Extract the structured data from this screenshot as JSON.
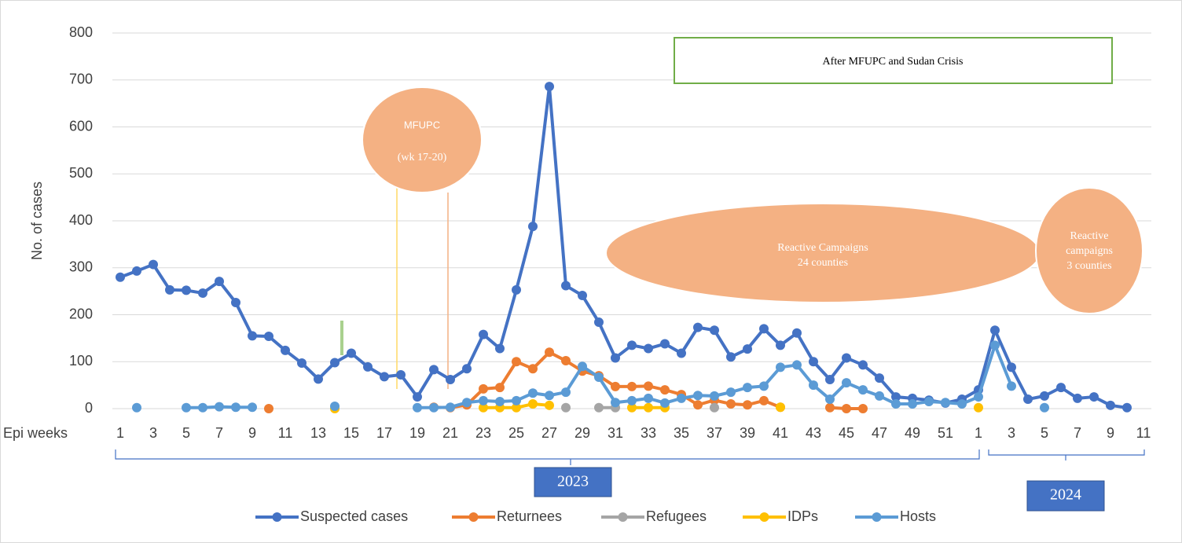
{
  "chart_data": {
    "type": "line",
    "y_axis_label": "No. of cases",
    "x_axis_label": "Epi weeks",
    "categories": [
      1,
      null,
      3,
      null,
      5,
      null,
      7,
      null,
      9,
      null,
      11,
      null,
      13,
      null,
      15,
      null,
      17,
      null,
      19,
      null,
      21,
      null,
      23,
      null,
      25,
      null,
      27,
      null,
      29,
      null,
      31,
      null,
      33,
      null,
      35,
      null,
      37,
      null,
      39,
      null,
      41,
      null,
      43,
      null,
      45,
      null,
      47,
      null,
      49,
      null,
      51,
      null,
      1,
      null,
      3,
      null,
      5,
      null,
      7,
      null,
      9,
      null,
      11
    ],
    "years": [
      "2023",
      "2024"
    ],
    "annotations": [
      "MFUPC",
      "(wk 17-20)",
      "After MFUPC and Sudan Crisis",
      "Reactive Campaigns",
      "24 counties",
      "Reactive",
      "campaigns",
      "3 counties"
    ],
    "ylim": [
      0,
      800
    ],
    "yticks": [
      0,
      100,
      200,
      300,
      400,
      500,
      600,
      700,
      800
    ],
    "grid": true,
    "series": [
      {
        "name": "Suspected cases",
        "color": "#4472c4",
        "values": [
          280,
          293,
          307,
          253,
          252,
          246,
          271,
          226,
          155,
          154,
          124,
          97,
          63,
          98,
          118,
          89,
          68,
          72,
          25,
          83,
          62,
          85,
          158,
          128,
          253,
          388,
          686,
          262,
          241,
          184,
          108,
          135,
          128,
          138,
          118,
          173,
          167,
          110,
          127,
          170,
          135,
          161,
          100,
          62,
          108,
          93,
          65,
          25,
          22,
          18,
          12,
          20,
          40,
          167,
          88,
          20,
          27,
          45,
          22,
          25,
          7,
          2,
          null
        ]
      },
      {
        "name": "Returnees",
        "color": "#ed7d31",
        "values": [
          null,
          null,
          null,
          null,
          null,
          null,
          null,
          null,
          null,
          0,
          null,
          null,
          null,
          null,
          null,
          null,
          null,
          null,
          null,
          3,
          2,
          8,
          42,
          45,
          100,
          85,
          120,
          102,
          80,
          70,
          47,
          47,
          48,
          40,
          30,
          8,
          18,
          10,
          8,
          17,
          3,
          null,
          null,
          2,
          0,
          0,
          null,
          null,
          null,
          null,
          null,
          null,
          null,
          null,
          null,
          null,
          null,
          null,
          null,
          null,
          null,
          null,
          null
        ]
      },
      {
        "name": "Refugees",
        "color": "#a5a5a5",
        "values": [
          null,
          null,
          null,
          null,
          null,
          null,
          null,
          null,
          null,
          null,
          null,
          null,
          null,
          null,
          null,
          null,
          null,
          null,
          null,
          null,
          null,
          null,
          null,
          null,
          null,
          null,
          null,
          2,
          null,
          2,
          2,
          null,
          null,
          null,
          null,
          null,
          2,
          null,
          null,
          null,
          null,
          null,
          null,
          null,
          null,
          null,
          null,
          null,
          null,
          null,
          null,
          null,
          null,
          null,
          null,
          null,
          null,
          null,
          null,
          null,
          null,
          null,
          null
        ]
      },
      {
        "name": "IDPs",
        "color": "#ffc000",
        "values": [
          null,
          null,
          null,
          null,
          null,
          null,
          null,
          null,
          null,
          null,
          null,
          null,
          null,
          0,
          null,
          null,
          null,
          null,
          null,
          null,
          null,
          null,
          2,
          2,
          2,
          10,
          7,
          null,
          null,
          null,
          null,
          2,
          2,
          2,
          null,
          null,
          null,
          null,
          null,
          null,
          3,
          null,
          null,
          null,
          null,
          null,
          null,
          null,
          null,
          null,
          null,
          null,
          2,
          null,
          null,
          null,
          null,
          null,
          null,
          null,
          null,
          null,
          null
        ]
      },
      {
        "name": "Hosts",
        "color": "#5b9bd5",
        "values": [
          null,
          2,
          null,
          null,
          2,
          2,
          4,
          3,
          3,
          null,
          null,
          null,
          null,
          5,
          null,
          null,
          null,
          null,
          2,
          2,
          3,
          13,
          17,
          15,
          17,
          33,
          28,
          35,
          90,
          67,
          13,
          17,
          22,
          12,
          22,
          28,
          27,
          35,
          45,
          48,
          88,
          93,
          50,
          20,
          55,
          40,
          27,
          10,
          10,
          15,
          13,
          10,
          25,
          135,
          48,
          null,
          2,
          null,
          null,
          null,
          null,
          null,
          null
        ]
      }
    ]
  }
}
